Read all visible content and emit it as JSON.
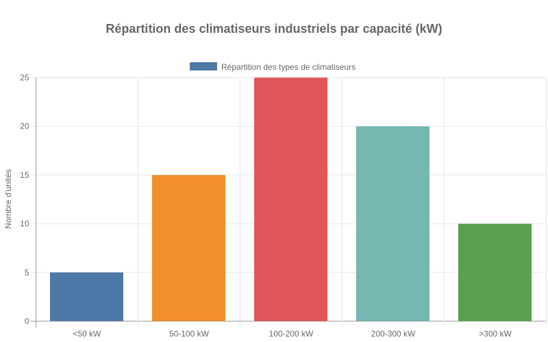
{
  "chart_data": {
    "type": "bar",
    "title": "Répartition des climatiseurs industriels par capacité (kW)",
    "xlabel": "",
    "ylabel": "Nombre d'unités",
    "categories": [
      "<50 kW",
      "50-100 kW",
      "100-200 kW",
      "200-300 kW",
      ">300 kW"
    ],
    "series": [
      {
        "name": "Répartition des types de climatiseurs",
        "values": [
          5,
          15,
          25,
          20,
          10
        ],
        "colors": [
          "#4e79a7",
          "#f28e2b",
          "#e15759",
          "#76b7b2",
          "#59a14f"
        ]
      }
    ],
    "legend_color": "#4e79a7",
    "ylim": [
      0,
      25
    ],
    "yticks": [
      0,
      5,
      10,
      15,
      20,
      25
    ],
    "grid": true,
    "legend_position": "top"
  }
}
